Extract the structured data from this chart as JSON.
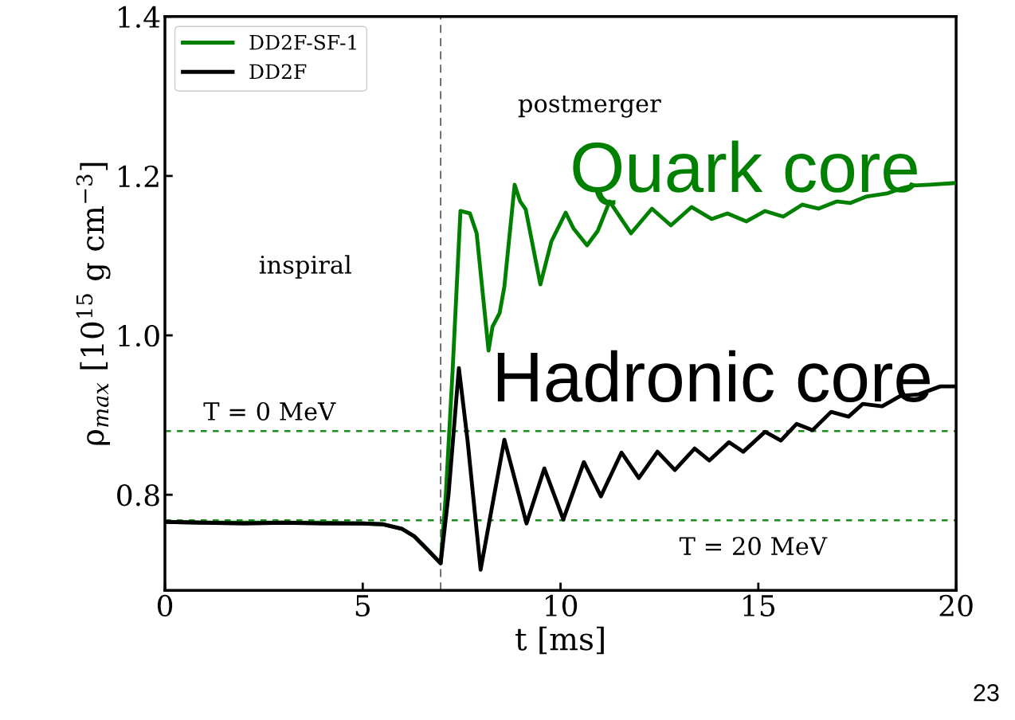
{
  "chart_data": {
    "type": "line",
    "xlabel": "t [ms]",
    "ylabel": "ρ$_{max}$ [10$^{15}$ g cm$^{−3}$]",
    "xlim": [
      0,
      20
    ],
    "ylim": [
      0.68,
      1.4
    ],
    "xticks": [
      0,
      5,
      10,
      15,
      20
    ],
    "yticks": [
      0.8,
      {
        "value": 1.0,
        "label": "1.0"
      },
      1.2,
      1.4
    ],
    "grid": false,
    "legend": "top left",
    "marker": "none",
    "line_style": "solid",
    "series": [
      {
        "name": "DD2F-SF-1",
        "color": "#008000",
        "x": [
          0,
          1,
          2,
          3,
          4,
          5,
          5.5,
          6,
          6.3,
          6.6,
          6.97,
          7.1,
          7.27,
          7.47,
          7.71,
          7.88,
          8.18,
          8.28,
          8.46,
          8.58,
          8.84,
          8.98,
          9.12,
          9.49,
          9.77,
          10.13,
          10.33,
          10.67,
          10.94,
          11.24,
          11.78,
          12.31,
          12.79,
          13.31,
          13.82,
          14.22,
          14.7,
          15.17,
          15.63,
          16.11,
          16.52,
          16.98,
          17.32,
          17.72,
          18.25,
          18.59,
          18.93,
          19.34,
          19.94
        ],
        "values": [
          0.766,
          0.765,
          0.765,
          0.765,
          0.765,
          0.764,
          0.763,
          0.757,
          0.748,
          0.733,
          0.714,
          0.8,
          0.954,
          1.156,
          1.153,
          1.128,
          0.981,
          1.011,
          1.028,
          1.061,
          1.189,
          1.168,
          1.158,
          1.064,
          1.118,
          1.154,
          1.134,
          1.113,
          1.131,
          1.168,
          1.128,
          1.159,
          1.138,
          1.161,
          1.146,
          1.153,
          1.143,
          1.156,
          1.149,
          1.164,
          1.159,
          1.168,
          1.166,
          1.174,
          1.178,
          1.184,
          1.188,
          1.189,
          1.191
        ]
      },
      {
        "name": "DD2F",
        "color": "#000000",
        "x": [
          0,
          1,
          2,
          3,
          4,
          5,
          5.5,
          6,
          6.3,
          6.6,
          6.97,
          7.17,
          7.43,
          7.65,
          7.98,
          8.28,
          8.58,
          9.14,
          9.59,
          10.07,
          10.59,
          11.02,
          11.54,
          11.98,
          12.45,
          12.89,
          13.39,
          13.76,
          14.26,
          14.62,
          15.17,
          15.57,
          15.97,
          16.37,
          16.84,
          17.28,
          17.64,
          18.13,
          18.59,
          19.06,
          19.6,
          19.94
        ],
        "values": [
          0.766,
          0.765,
          0.764,
          0.765,
          0.764,
          0.764,
          0.763,
          0.757,
          0.748,
          0.733,
          0.714,
          0.801,
          0.959,
          0.868,
          0.706,
          0.788,
          0.869,
          0.764,
          0.833,
          0.769,
          0.841,
          0.798,
          0.853,
          0.821,
          0.854,
          0.831,
          0.858,
          0.843,
          0.866,
          0.854,
          0.879,
          0.868,
          0.889,
          0.881,
          0.904,
          0.898,
          0.914,
          0.911,
          0.924,
          0.926,
          0.936,
          0.936
        ]
      }
    ],
    "ref_lines": [
      {
        "axis": "y",
        "value": 0.88,
        "color": "#1a8c1a",
        "line_style": "dotted"
      },
      {
        "axis": "y",
        "value": 0.768,
        "color": "#1a8c1a",
        "line_style": "dotted"
      },
      {
        "axis": "x",
        "value": 6.97,
        "color": "#555555",
        "line_style": "dashed"
      }
    ],
    "annotations": [
      "inspiral",
      "postmerger",
      "Quark core",
      "Hadronic core",
      "23",
      "T = 0 MeV",
      "T = 20 MeV"
    ]
  }
}
